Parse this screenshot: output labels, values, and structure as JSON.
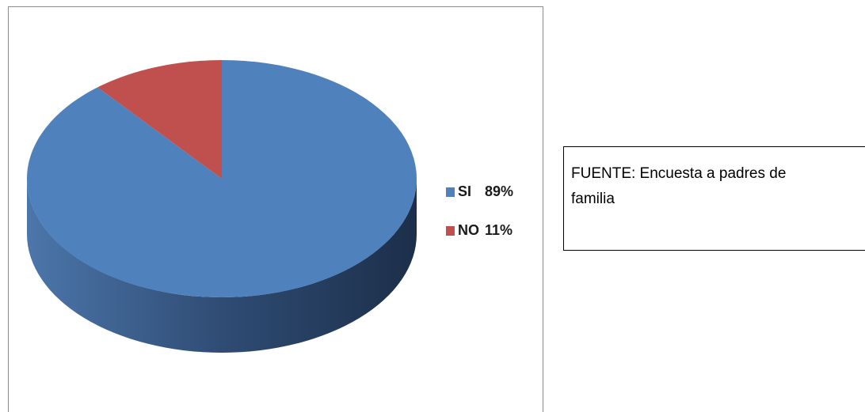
{
  "chart_data": {
    "type": "pie",
    "series": [
      {
        "name": "SI",
        "color": "#4f81bd",
        "values": [
          89
        ],
        "value_labels": [
          "89%"
        ]
      },
      {
        "name": "NO",
        "color": "#c0504d",
        "values": [
          11
        ],
        "value_labels": [
          "11%"
        ]
      }
    ]
  },
  "note_box": {
    "text": "FUENTE: Encuesta a padres de familia"
  }
}
